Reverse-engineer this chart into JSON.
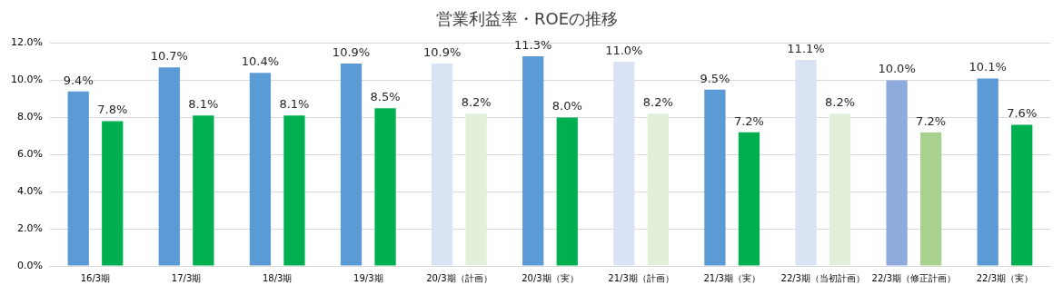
{
  "chart_data": {
    "type": "bar",
    "title": "営業利益率・ROEの推移",
    "categories": [
      "16/3期",
      "17/3期",
      "18/3期",
      "19/3期",
      "20/3期（計画）",
      "20/3期（実）",
      "21/3期（計画）",
      "21/3期（実）",
      "22/3期（当初計画）",
      "22/3期（修正計画）",
      "22/3期（実）"
    ],
    "series": [
      {
        "colors": [
          "#5b9bd5",
          "#5b9bd5",
          "#5b9bd5",
          "#5b9bd5",
          "#dae3f3",
          "#5b9bd5",
          "#dae3f3",
          "#5b9bd5",
          "#dae3f3",
          "#8faadc",
          "#5b9bd5"
        ],
        "values": [
          9.4,
          10.7,
          10.4,
          10.9,
          10.9,
          11.3,
          11.0,
          9.5,
          11.1,
          10.0,
          10.1
        ],
        "value_labels": [
          "9.4%",
          "10.7%",
          "10.4%",
          "10.9%",
          "10.9%",
          "11.3%",
          "11.0%",
          "9.5%",
          "11.1%",
          "10.0%",
          "10.1%"
        ]
      },
      {
        "colors": [
          "#00b050",
          "#00b050",
          "#00b050",
          "#00b050",
          "#e2f0d9",
          "#00b050",
          "#e2f0d9",
          "#00b050",
          "#e2f0d9",
          "#a9d18e",
          "#00b050"
        ],
        "values": [
          7.8,
          8.1,
          8.1,
          8.5,
          8.2,
          8.0,
          8.2,
          7.2,
          8.2,
          7.2,
          7.6
        ],
        "value_labels": [
          "7.8%",
          "8.1%",
          "8.1%",
          "8.5%",
          "8.2%",
          "8.0%",
          "8.2%",
          "7.2%",
          "8.2%",
          "7.2%",
          "7.6%"
        ]
      }
    ],
    "ylim": [
      0,
      12
    ],
    "yticks": [
      {
        "value": 0,
        "label": "0.0%"
      },
      {
        "value": 2,
        "label": "2.0%"
      },
      {
        "value": 4,
        "label": "4.0%"
      },
      {
        "value": 6,
        "label": "6.0%"
      },
      {
        "value": 8,
        "label": "8.0%"
      },
      {
        "value": 10,
        "label": "10.0%"
      },
      {
        "value": 12,
        "label": "12.0%"
      }
    ],
    "grid": "y",
    "legend": false
  }
}
